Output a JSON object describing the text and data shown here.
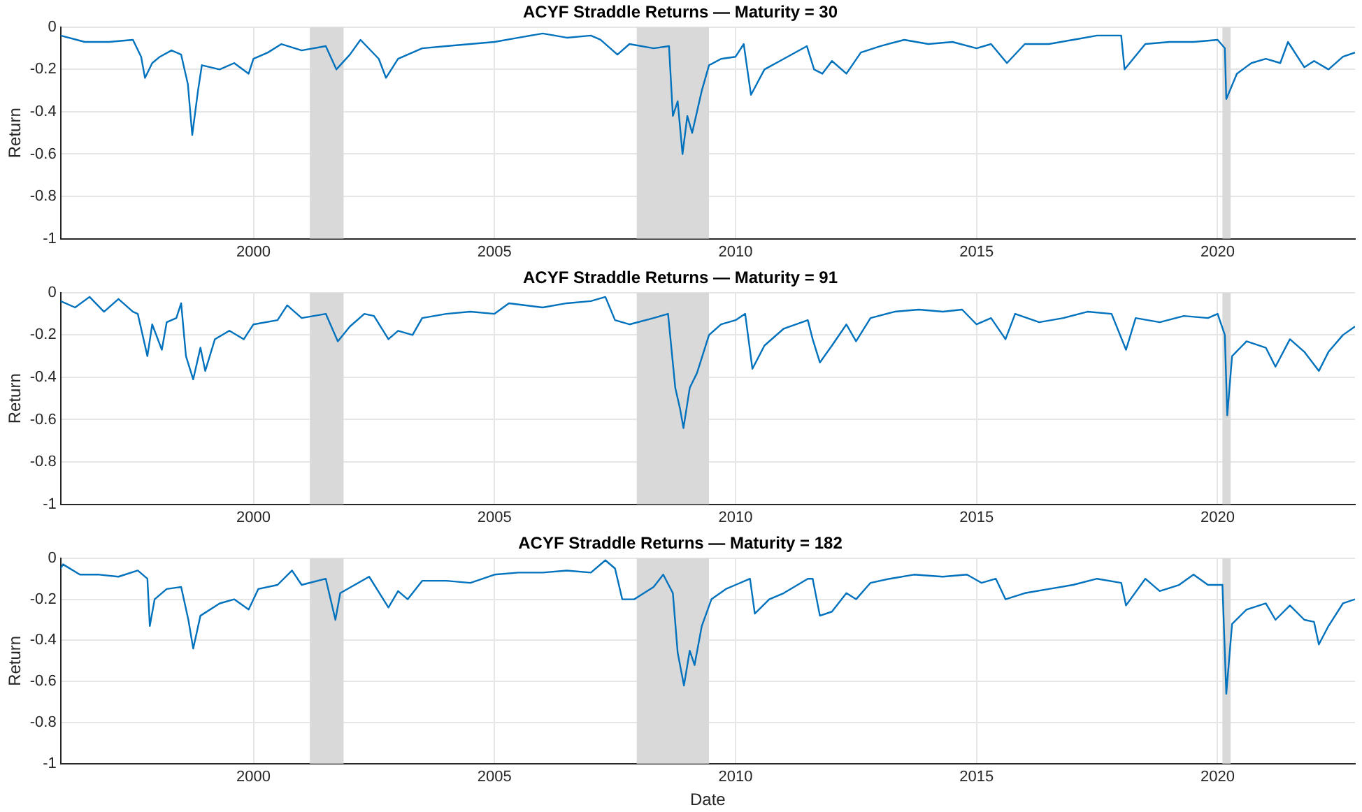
{
  "chart_data": [
    {
      "type": "line",
      "title": "ACYF Straddle Returns — Maturity = 30",
      "ylabel": "Return",
      "xlim": [
        1996.0,
        2022.85
      ],
      "ylim": [
        -1,
        0
      ],
      "xticks": [
        2000,
        2005,
        2010,
        2015,
        2020
      ],
      "yticks": [
        -1,
        -0.8,
        -0.6,
        -0.4,
        -0.2,
        0
      ],
      "grid": true,
      "bands": [
        {
          "axis": "x",
          "from": 2001.17,
          "to": 2001.87,
          "color": "#d9d9d9"
        },
        {
          "axis": "x",
          "from": 2007.95,
          "to": 2009.45,
          "color": "#d9d9d9"
        },
        {
          "axis": "x",
          "from": 2020.1,
          "to": 2020.27,
          "color": "#d9d9d9"
        }
      ],
      "x": [
        1996.0,
        1996.5,
        1997.0,
        1997.5,
        1997.67,
        1997.75,
        1997.9,
        1998.06,
        1998.3,
        1998.5,
        1998.64,
        1998.73,
        1998.85,
        1998.93,
        1999.3,
        1999.6,
        1999.9,
        2000.0,
        2000.3,
        2000.58,
        2001.0,
        2001.5,
        2001.72,
        2002.0,
        2002.22,
        2002.6,
        2002.75,
        2003.0,
        2003.5,
        2004.0,
        2004.5,
        2005.0,
        2005.5,
        2006.0,
        2006.5,
        2007.0,
        2007.2,
        2007.55,
        2007.8,
        2008.3,
        2008.62,
        2008.7,
        2008.8,
        2008.9,
        2009.0,
        2009.1,
        2009.3,
        2009.45,
        2009.7,
        2010.0,
        2010.17,
        2010.32,
        2010.6,
        2011.0,
        2011.48,
        2011.63,
        2011.8,
        2012.0,
        2012.3,
        2012.6,
        2013.0,
        2013.5,
        2014.0,
        2014.5,
        2015.0,
        2015.3,
        2015.63,
        2016.0,
        2016.5,
        2017.0,
        2017.5,
        2018.0,
        2018.07,
        2018.5,
        2019.0,
        2019.5,
        2020.0,
        2020.15,
        2020.18,
        2020.4,
        2020.7,
        2021.0,
        2021.3,
        2021.46,
        2021.8,
        2022.0,
        2022.3,
        2022.6,
        2022.85
      ],
      "series": [
        {
          "color": "#0072bd",
          "values": [
            -0.04,
            -0.07,
            -0.07,
            -0.06,
            -0.14,
            -0.24,
            -0.17,
            -0.14,
            -0.11,
            -0.13,
            -0.27,
            -0.51,
            -0.3,
            -0.18,
            -0.2,
            -0.17,
            -0.22,
            -0.15,
            -0.12,
            -0.08,
            -0.11,
            -0.09,
            -0.2,
            -0.13,
            -0.06,
            -0.15,
            -0.24,
            -0.15,
            -0.1,
            -0.09,
            -0.08,
            -0.07,
            -0.05,
            -0.03,
            -0.05,
            -0.04,
            -0.06,
            -0.13,
            -0.08,
            -0.1,
            -0.09,
            -0.42,
            -0.35,
            -0.6,
            -0.42,
            -0.5,
            -0.3,
            -0.18,
            -0.15,
            -0.14,
            -0.08,
            -0.32,
            -0.2,
            -0.15,
            -0.09,
            -0.2,
            -0.22,
            -0.16,
            -0.22,
            -0.12,
            -0.09,
            -0.06,
            -0.08,
            -0.07,
            -0.1,
            -0.08,
            -0.17,
            -0.08,
            -0.08,
            -0.06,
            -0.04,
            -0.04,
            -0.2,
            -0.08,
            -0.07,
            -0.07,
            -0.06,
            -0.1,
            -0.34,
            -0.22,
            -0.17,
            -0.15,
            -0.17,
            -0.07,
            -0.19,
            -0.16,
            -0.2,
            -0.14,
            -0.12
          ]
        }
      ]
    },
    {
      "type": "line",
      "title": "ACYF Straddle Returns — Maturity = 91",
      "ylabel": "Return",
      "xlim": [
        1996.0,
        2022.85
      ],
      "ylim": [
        -1,
        0
      ],
      "xticks": [
        2000,
        2005,
        2010,
        2015,
        2020
      ],
      "yticks": [
        -1,
        -0.8,
        -0.6,
        -0.4,
        -0.2,
        0
      ],
      "grid": true,
      "bands": [
        {
          "axis": "x",
          "from": 2001.17,
          "to": 2001.87,
          "color": "#d9d9d9"
        },
        {
          "axis": "x",
          "from": 2007.95,
          "to": 2009.45,
          "color": "#d9d9d9"
        },
        {
          "axis": "x",
          "from": 2020.1,
          "to": 2020.27,
          "color": "#d9d9d9"
        }
      ],
      "x": [
        1996.0,
        1996.3,
        1996.6,
        1996.9,
        1997.2,
        1997.5,
        1997.6,
        1997.8,
        1997.9,
        1998.1,
        1998.2,
        1998.4,
        1998.5,
        1998.6,
        1998.75,
        1998.9,
        1999.0,
        1999.2,
        1999.5,
        1999.8,
        2000.0,
        2000.5,
        2000.7,
        2001.0,
        2001.5,
        2001.75,
        2002.0,
        2002.3,
        2002.5,
        2002.8,
        2003.0,
        2003.3,
        2003.5,
        2004.0,
        2004.5,
        2005.0,
        2005.3,
        2006.0,
        2006.5,
        2007.0,
        2007.3,
        2007.5,
        2007.8,
        2008.3,
        2008.6,
        2008.75,
        2008.85,
        2008.92,
        2009.05,
        2009.2,
        2009.45,
        2009.7,
        2010.0,
        2010.2,
        2010.35,
        2010.6,
        2011.0,
        2011.5,
        2011.6,
        2011.75,
        2012.0,
        2012.3,
        2012.5,
        2012.8,
        2013.3,
        2013.8,
        2014.3,
        2014.7,
        2015.0,
        2015.3,
        2015.6,
        2015.8,
        2016.3,
        2016.8,
        2017.3,
        2017.8,
        2018.1,
        2018.3,
        2018.8,
        2019.3,
        2019.8,
        2020.0,
        2020.15,
        2020.2,
        2020.3,
        2020.6,
        2021.0,
        2021.2,
        2021.5,
        2021.8,
        2022.1,
        2022.3,
        2022.6,
        2022.85
      ],
      "series": [
        {
          "color": "#0072bd",
          "values": [
            -0.04,
            -0.07,
            -0.02,
            -0.09,
            -0.03,
            -0.09,
            -0.1,
            -0.3,
            -0.15,
            -0.27,
            -0.14,
            -0.12,
            -0.05,
            -0.3,
            -0.41,
            -0.26,
            -0.37,
            -0.22,
            -0.18,
            -0.22,
            -0.15,
            -0.13,
            -0.06,
            -0.12,
            -0.1,
            -0.23,
            -0.16,
            -0.1,
            -0.11,
            -0.22,
            -0.18,
            -0.2,
            -0.12,
            -0.1,
            -0.09,
            -0.1,
            -0.05,
            -0.07,
            -0.05,
            -0.04,
            -0.02,
            -0.13,
            -0.15,
            -0.12,
            -0.1,
            -0.45,
            -0.55,
            -0.64,
            -0.45,
            -0.38,
            -0.2,
            -0.15,
            -0.13,
            -0.1,
            -0.36,
            -0.25,
            -0.17,
            -0.13,
            -0.22,
            -0.33,
            -0.25,
            -0.15,
            -0.23,
            -0.12,
            -0.09,
            -0.08,
            -0.09,
            -0.08,
            -0.15,
            -0.12,
            -0.22,
            -0.1,
            -0.14,
            -0.12,
            -0.09,
            -0.1,
            -0.27,
            -0.12,
            -0.14,
            -0.11,
            -0.12,
            -0.1,
            -0.2,
            -0.58,
            -0.3,
            -0.23,
            -0.26,
            -0.35,
            -0.22,
            -0.28,
            -0.37,
            -0.28,
            -0.2,
            -0.16
          ]
        }
      ]
    },
    {
      "type": "line",
      "title": "ACYF Straddle Returns — Maturity = 182",
      "xlabel": "Date",
      "ylabel": "Return",
      "xlim": [
        1996.0,
        2022.85
      ],
      "ylim": [
        -1,
        0
      ],
      "xticks": [
        2000,
        2005,
        2010,
        2015,
        2020
      ],
      "yticks": [
        -1,
        -0.8,
        -0.6,
        -0.4,
        -0.2,
        0
      ],
      "grid": true,
      "bands": [
        {
          "axis": "x",
          "from": 2001.17,
          "to": 2001.87,
          "color": "#d9d9d9"
        },
        {
          "axis": "x",
          "from": 2007.95,
          "to": 2009.45,
          "color": "#d9d9d9"
        },
        {
          "axis": "x",
          "from": 2020.1,
          "to": 2020.27,
          "color": "#d9d9d9"
        }
      ],
      "x": [
        1996.0,
        1996.05,
        1996.4,
        1996.8,
        1997.2,
        1997.6,
        1997.8,
        1997.85,
        1997.95,
        1998.2,
        1998.5,
        1998.65,
        1998.75,
        1998.9,
        1999.3,
        1999.6,
        1999.9,
        2000.1,
        2000.5,
        2000.8,
        2001.0,
        2001.5,
        2001.7,
        2001.8,
        2002.1,
        2002.4,
        2002.8,
        2003.0,
        2003.2,
        2003.5,
        2004.0,
        2004.5,
        2005.0,
        2005.5,
        2006.0,
        2006.5,
        2007.0,
        2007.3,
        2007.5,
        2007.65,
        2007.9,
        2008.3,
        2008.5,
        2008.7,
        2008.8,
        2008.93,
        2009.05,
        2009.15,
        2009.3,
        2009.5,
        2009.8,
        2010.0,
        2010.3,
        2010.4,
        2010.7,
        2011.0,
        2011.5,
        2011.6,
        2011.75,
        2012.0,
        2012.3,
        2012.5,
        2012.8,
        2013.2,
        2013.7,
        2014.3,
        2014.8,
        2015.1,
        2015.4,
        2015.6,
        2016.0,
        2016.5,
        2017.0,
        2017.5,
        2018.0,
        2018.1,
        2018.5,
        2018.8,
        2019.2,
        2019.5,
        2019.8,
        2020.1,
        2020.18,
        2020.3,
        2020.6,
        2021.0,
        2021.2,
        2021.5,
        2021.8,
        2022.0,
        2022.1,
        2022.3,
        2022.6,
        2022.85
      ],
      "series": [
        {
          "color": "#0072bd",
          "values": [
            -0.05,
            -0.03,
            -0.08,
            -0.08,
            -0.09,
            -0.06,
            -0.1,
            -0.33,
            -0.2,
            -0.15,
            -0.14,
            -0.3,
            -0.44,
            -0.28,
            -0.22,
            -0.2,
            -0.25,
            -0.15,
            -0.13,
            -0.06,
            -0.13,
            -0.1,
            -0.3,
            -0.17,
            -0.13,
            -0.09,
            -0.24,
            -0.16,
            -0.2,
            -0.11,
            -0.11,
            -0.12,
            -0.08,
            -0.07,
            -0.07,
            -0.06,
            -0.07,
            -0.01,
            -0.05,
            -0.2,
            -0.2,
            -0.14,
            -0.08,
            -0.17,
            -0.46,
            -0.62,
            -0.45,
            -0.52,
            -0.33,
            -0.2,
            -0.15,
            -0.13,
            -0.1,
            -0.27,
            -0.2,
            -0.17,
            -0.1,
            -0.1,
            -0.28,
            -0.26,
            -0.17,
            -0.2,
            -0.12,
            -0.1,
            -0.08,
            -0.09,
            -0.08,
            -0.12,
            -0.1,
            -0.2,
            -0.17,
            -0.15,
            -0.13,
            -0.1,
            -0.12,
            -0.23,
            -0.1,
            -0.16,
            -0.13,
            -0.08,
            -0.13,
            -0.13,
            -0.66,
            -0.32,
            -0.25,
            -0.22,
            -0.3,
            -0.23,
            -0.3,
            -0.31,
            -0.42,
            -0.33,
            -0.22,
            -0.2
          ]
        }
      ]
    }
  ]
}
